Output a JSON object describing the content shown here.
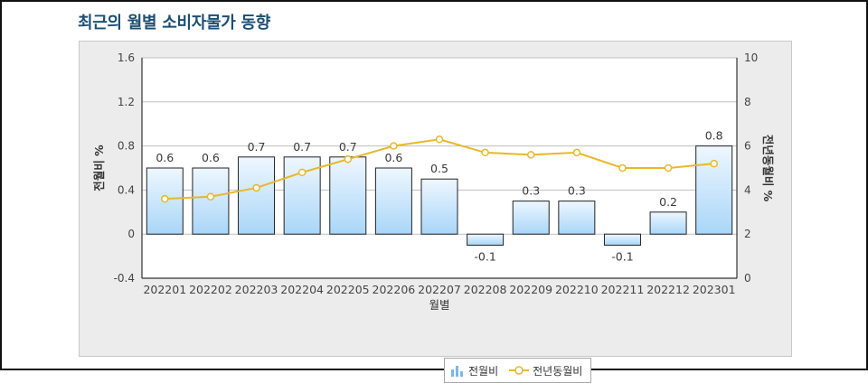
{
  "title": "최근의 월별 소비자물가 동향",
  "legend": {
    "bar_label": "전월비",
    "line_label": "전년동월비",
    "bar_icon": "bar-chart-icon",
    "line_icon": "line-marker-icon"
  },
  "colors": {
    "title": "#1d4f73",
    "bar_top": "#eef7ff",
    "bar_bottom": "#a9d6f8",
    "bar_border": "#222222",
    "line": "#e8b82a",
    "marker_fill": "#ffffff",
    "grid": "#bfbfbf",
    "plot_bg": "#ffffff"
  },
  "chart_data": {
    "type": "bar",
    "categories": [
      "202201",
      "202202",
      "202203",
      "202204",
      "202205",
      "202206",
      "202207",
      "202208",
      "202209",
      "202210",
      "202211",
      "202212",
      "202301"
    ],
    "series": [
      {
        "name": "전월비",
        "type": "bar",
        "axis": "left",
        "values": [
          0.6,
          0.6,
          0.7,
          0.7,
          0.7,
          0.6,
          0.5,
          -0.1,
          0.3,
          0.3,
          -0.1,
          0.2,
          0.8
        ],
        "labels": [
          "0.6",
          "0.6",
          "0.7",
          "0.7",
          "0.7",
          "0.6",
          "0.5",
          "-0.1",
          "0.3",
          "0.3",
          "-0.1",
          "0.2",
          "0.8"
        ]
      },
      {
        "name": "전년동월비",
        "type": "line",
        "axis": "right",
        "values": [
          3.6,
          3.7,
          4.1,
          4.8,
          5.4,
          6.0,
          6.3,
          5.7,
          5.6,
          5.7,
          5.0,
          5.0,
          5.2
        ]
      }
    ],
    "xlabel": "월별",
    "ylabel": "전월비 %",
    "y2label": "전년동월비 %",
    "ylim": [
      -0.4,
      1.6
    ],
    "yticks": [
      "-0.4",
      "0",
      "0.4",
      "0.8",
      "1.2",
      "1.6"
    ],
    "y2lim": [
      0,
      10
    ],
    "y2ticks": [
      "0",
      "2",
      "4",
      "6",
      "8",
      "10"
    ],
    "grid": true,
    "legend_position": "bottom"
  }
}
